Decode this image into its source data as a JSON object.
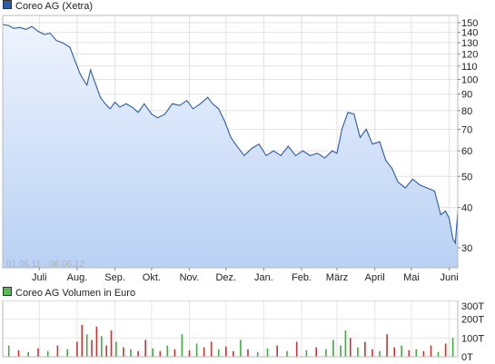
{
  "chart_data": [
    {
      "type": "area",
      "legend": "Coreo AG (Xetra)",
      "date_range_label": "01.06.11 - 08.06.12",
      "y_scale": "log",
      "y_ticks": [
        30,
        40,
        50,
        60,
        70,
        80,
        90,
        100,
        110,
        120,
        130,
        140,
        150
      ],
      "ylim": [
        26,
        158
      ],
      "x_tick_labels": [
        "Juli",
        "Aug.",
        "Sep.",
        "Okt.",
        "Nov.",
        "Dez.",
        "Jan.",
        "Feb.",
        "März",
        "April",
        "Mai",
        "Juni"
      ],
      "x_tick_dates": [
        "2011-07-01",
        "2011-08-01",
        "2011-09-01",
        "2011-10-01",
        "2011-11-01",
        "2011-12-01",
        "2012-01-01",
        "2012-02-01",
        "2012-03-01",
        "2012-04-01",
        "2012-05-01",
        "2012-06-01"
      ],
      "xlim": [
        "2011-06-01",
        "2012-06-08"
      ],
      "grid": true,
      "colors": {
        "line": "#2a5ca8",
        "fill_top": "#eef3fd",
        "fill_bottom": "#b9d1f4"
      },
      "series": [
        {
          "x": [
            "2011-06-01",
            "2011-06-06",
            "2011-06-10",
            "2011-06-15",
            "2011-06-20",
            "2011-06-25",
            "2011-06-30",
            "2011-07-05",
            "2011-07-10",
            "2011-07-15",
            "2011-07-20",
            "2011-07-26",
            "2011-07-30",
            "2011-08-03",
            "2011-08-06",
            "2011-08-09",
            "2011-08-12",
            "2011-08-16",
            "2011-08-20",
            "2011-08-24",
            "2011-08-28",
            "2011-09-01",
            "2011-09-05",
            "2011-09-10",
            "2011-09-15",
            "2011-09-20",
            "2011-09-25",
            "2011-10-01",
            "2011-10-06",
            "2011-10-12",
            "2011-10-18",
            "2011-10-24",
            "2011-10-30",
            "2011-11-04",
            "2011-11-10",
            "2011-11-16",
            "2011-11-20",
            "2011-11-25",
            "2011-11-30",
            "2011-12-05",
            "2011-12-10",
            "2011-12-16",
            "2011-12-22",
            "2011-12-28",
            "2012-01-03",
            "2012-01-09",
            "2012-01-15",
            "2012-01-21",
            "2012-01-27",
            "2012-02-02",
            "2012-02-08",
            "2012-02-14",
            "2012-02-20",
            "2012-02-26",
            "2012-03-01",
            "2012-03-05",
            "2012-03-10",
            "2012-03-15",
            "2012-03-20",
            "2012-03-25",
            "2012-03-30",
            "2012-04-05",
            "2012-04-10",
            "2012-04-15",
            "2012-04-20",
            "2012-04-26",
            "2012-05-02",
            "2012-05-08",
            "2012-05-14",
            "2012-05-20",
            "2012-05-25",
            "2012-05-29",
            "2012-06-01",
            "2012-06-04",
            "2012-06-06",
            "2012-06-08"
          ],
          "y": [
            148,
            147,
            144,
            145,
            143,
            146,
            141,
            138,
            139,
            132,
            130,
            126,
            115,
            105,
            100,
            96,
            107,
            97,
            88,
            84,
            81,
            85,
            82,
            84,
            82,
            79,
            84,
            78,
            76,
            78,
            84,
            83,
            86,
            81,
            84,
            88,
            84,
            81,
            74,
            66,
            62,
            58,
            61,
            63,
            58,
            60,
            58,
            62,
            58,
            60,
            58,
            59,
            57,
            60,
            59,
            70,
            79,
            78,
            66,
            70,
            63,
            64,
            56,
            53,
            48,
            46,
            49,
            47,
            46,
            45,
            38,
            39,
            37,
            32,
            31,
            39
          ]
        }
      ]
    },
    {
      "type": "bar",
      "legend": "Coreo AG Volumen in Euro",
      "y_ticks": [
        "0T",
        "100T",
        "200T",
        "300T"
      ],
      "y_tick_values": [
        0,
        100,
        200,
        300
      ],
      "ylim": [
        0,
        300
      ],
      "colors": {
        "up": "#44aa44",
        "down": "#cc3333"
      },
      "x": [
        "2011-06-06",
        "2011-06-14",
        "2011-06-22",
        "2011-06-30",
        "2011-07-08",
        "2011-07-16",
        "2011-07-24",
        "2011-08-01",
        "2011-08-05",
        "2011-08-09",
        "2011-08-13",
        "2011-08-17",
        "2011-08-21",
        "2011-08-25",
        "2011-08-29",
        "2011-09-02",
        "2011-09-08",
        "2011-09-14",
        "2011-09-20",
        "2011-09-26",
        "2011-10-02",
        "2011-10-08",
        "2011-10-14",
        "2011-10-20",
        "2011-10-26",
        "2011-11-01",
        "2011-11-07",
        "2011-11-13",
        "2011-11-19",
        "2011-11-25",
        "2011-12-01",
        "2011-12-07",
        "2011-12-13",
        "2011-12-19",
        "2011-12-27",
        "2012-01-04",
        "2012-01-12",
        "2012-01-20",
        "2012-01-28",
        "2012-02-05",
        "2012-02-13",
        "2012-02-21",
        "2012-02-27",
        "2012-03-04",
        "2012-03-08",
        "2012-03-12",
        "2012-03-18",
        "2012-03-24",
        "2012-03-30",
        "2012-04-05",
        "2012-04-11",
        "2012-04-17",
        "2012-04-23",
        "2012-04-29",
        "2012-05-05",
        "2012-05-11",
        "2012-05-17",
        "2012-05-23",
        "2012-05-29",
        "2012-06-04"
      ],
      "values": [
        60,
        35,
        25,
        45,
        30,
        60,
        40,
        80,
        170,
        120,
        90,
        160,
        110,
        60,
        140,
        80,
        50,
        40,
        30,
        90,
        45,
        30,
        60,
        40,
        120,
        35,
        70,
        50,
        80,
        40,
        55,
        30,
        90,
        40,
        25,
        45,
        60,
        30,
        80,
        35,
        50,
        40,
        90,
        60,
        140,
        100,
        50,
        80,
        40,
        30,
        120,
        50,
        60,
        35,
        40,
        30,
        60,
        25,
        70,
        100
      ],
      "direction": [
        "up",
        "down",
        "up",
        "down",
        "up",
        "down",
        "up",
        "down",
        "down",
        "up",
        "down",
        "down",
        "up",
        "down",
        "down",
        "up",
        "down",
        "up",
        "down",
        "down",
        "up",
        "down",
        "up",
        "down",
        "up",
        "down",
        "up",
        "down",
        "down",
        "up",
        "down",
        "down",
        "up",
        "down",
        "up",
        "up",
        "down",
        "up",
        "down",
        "up",
        "down",
        "up",
        "up",
        "up",
        "up",
        "down",
        "up",
        "down",
        "down",
        "up",
        "down",
        "down",
        "up",
        "down",
        "up",
        "down",
        "down",
        "up",
        "down",
        "up"
      ]
    }
  ]
}
